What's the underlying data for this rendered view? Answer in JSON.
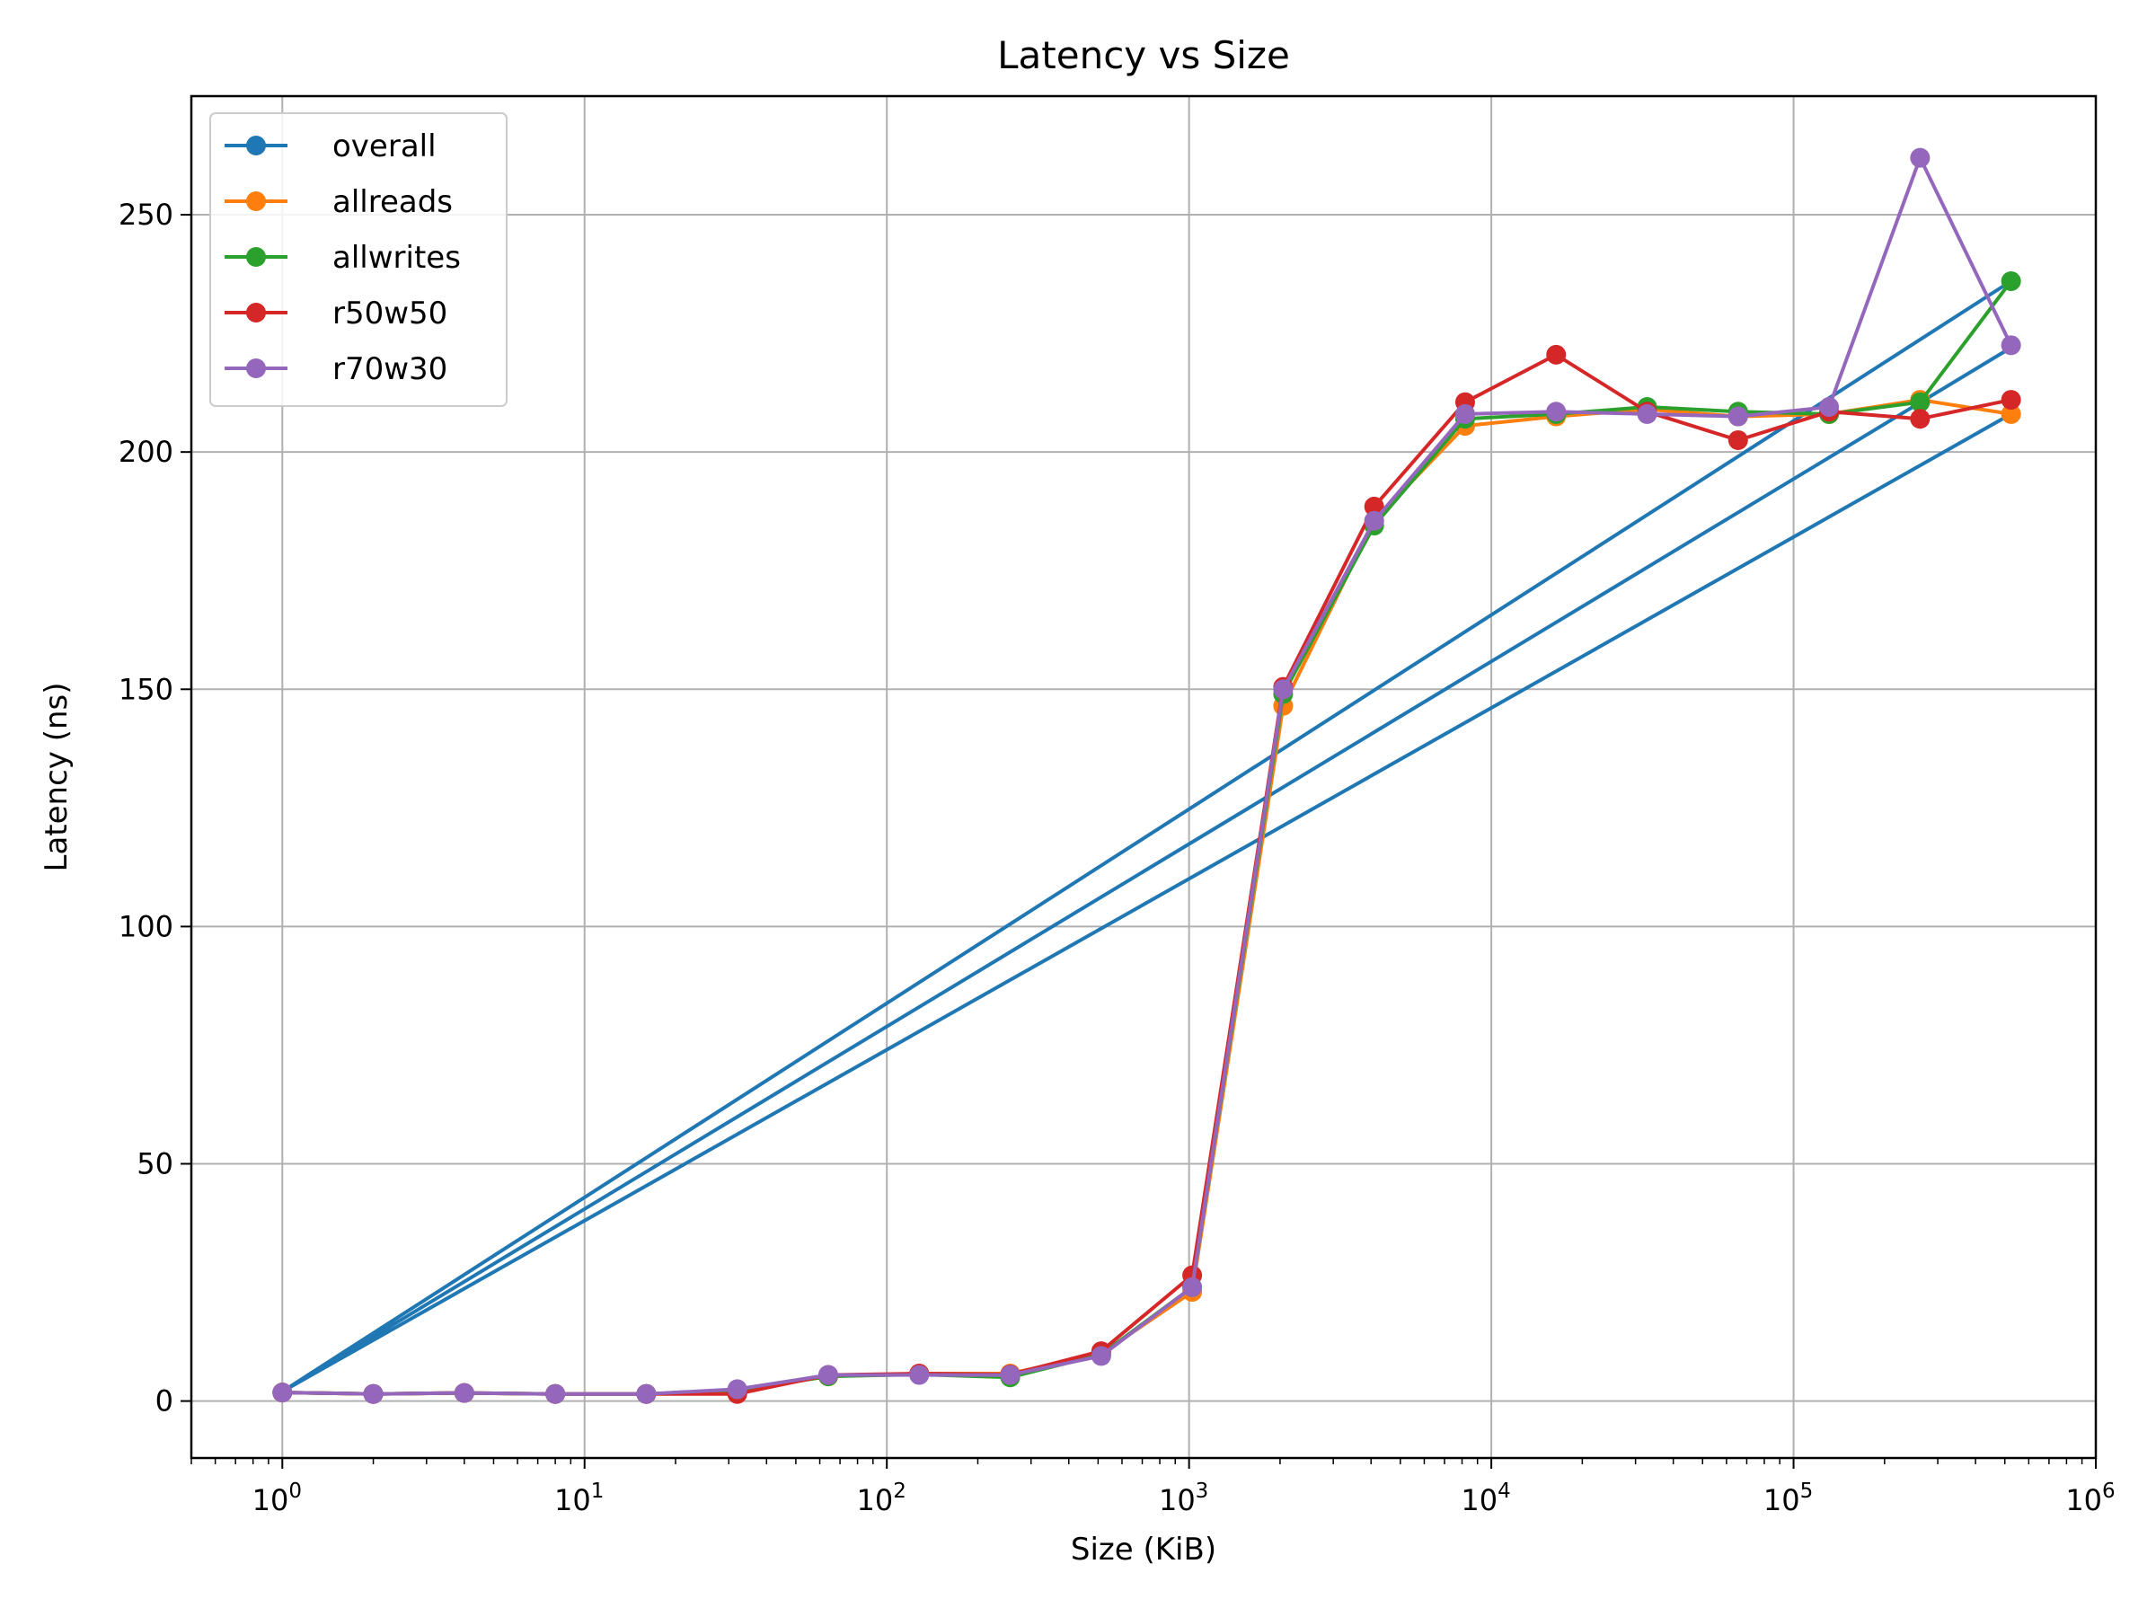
{
  "chart_data": {
    "type": "line",
    "title": "Latency vs Size",
    "xlabel": "Size (KiB)",
    "ylabel": "Latency (ns)",
    "x_scale": "log",
    "xlim": [
      0.5,
      1000000
    ],
    "ylim": [
      -12,
      275
    ],
    "x_ticks": [
      {
        "value": 1,
        "base": "10",
        "exp": "0"
      },
      {
        "value": 10,
        "base": "10",
        "exp": "1"
      },
      {
        "value": 100,
        "base": "10",
        "exp": "2"
      },
      {
        "value": 1000,
        "base": "10",
        "exp": "3"
      },
      {
        "value": 10000,
        "base": "10",
        "exp": "4"
      },
      {
        "value": 100000,
        "base": "10",
        "exp": "5"
      },
      {
        "value": 1000000,
        "base": "10",
        "exp": "6"
      }
    ],
    "y_ticks": [
      0,
      50,
      100,
      150,
      200,
      250
    ],
    "grid": true,
    "legend_position": "top-left",
    "x": [
      1,
      2,
      4,
      8,
      16,
      32,
      64,
      128,
      256,
      512,
      1024,
      2048,
      4096,
      8192,
      16384,
      32768,
      65536,
      131072,
      262144,
      524288
    ],
    "series": [
      {
        "name": "overall",
        "color": "#1f77b4",
        "marker": false,
        "points": [
          [
            1,
            2
          ],
          [
            524288,
            236
          ],
          [
            1,
            2
          ],
          [
            524288,
            222
          ],
          [
            1,
            2
          ],
          [
            524288,
            208
          ]
        ]
      },
      {
        "name": "allreads",
        "color": "#ff7f0e",
        "values": [
          1.8,
          1.5,
          1.7,
          1.5,
          1.5,
          2.2,
          5.2,
          5.8,
          5.8,
          10.0,
          23.0,
          146.5,
          185.5,
          205.5,
          207.5,
          209.0,
          207.5,
          208.0,
          211.0,
          208.0
        ]
      },
      {
        "name": "allwrites",
        "color": "#2ca02c",
        "values": [
          1.8,
          1.5,
          1.7,
          1.5,
          1.5,
          2.2,
          5.2,
          5.6,
          5.0,
          9.8,
          24.0,
          149.0,
          184.5,
          207.0,
          208.0,
          209.5,
          208.5,
          208.0,
          210.5,
          236.0
        ]
      },
      {
        "name": "r50w50",
        "color": "#d62728",
        "values": [
          1.8,
          1.5,
          1.7,
          1.5,
          1.5,
          1.5,
          5.5,
          5.8,
          5.6,
          10.5,
          26.5,
          150.5,
          188.5,
          210.5,
          220.5,
          208.5,
          202.5,
          208.5,
          207.0,
          211.0
        ]
      },
      {
        "name": "r70w30",
        "color": "#9467bd",
        "values": [
          1.8,
          1.5,
          1.7,
          1.5,
          1.5,
          2.5,
          5.5,
          5.5,
          5.5,
          9.5,
          24.0,
          150.0,
          185.5,
          208.0,
          208.5,
          208.0,
          207.5,
          209.5,
          262.0,
          222.5
        ]
      }
    ]
  }
}
